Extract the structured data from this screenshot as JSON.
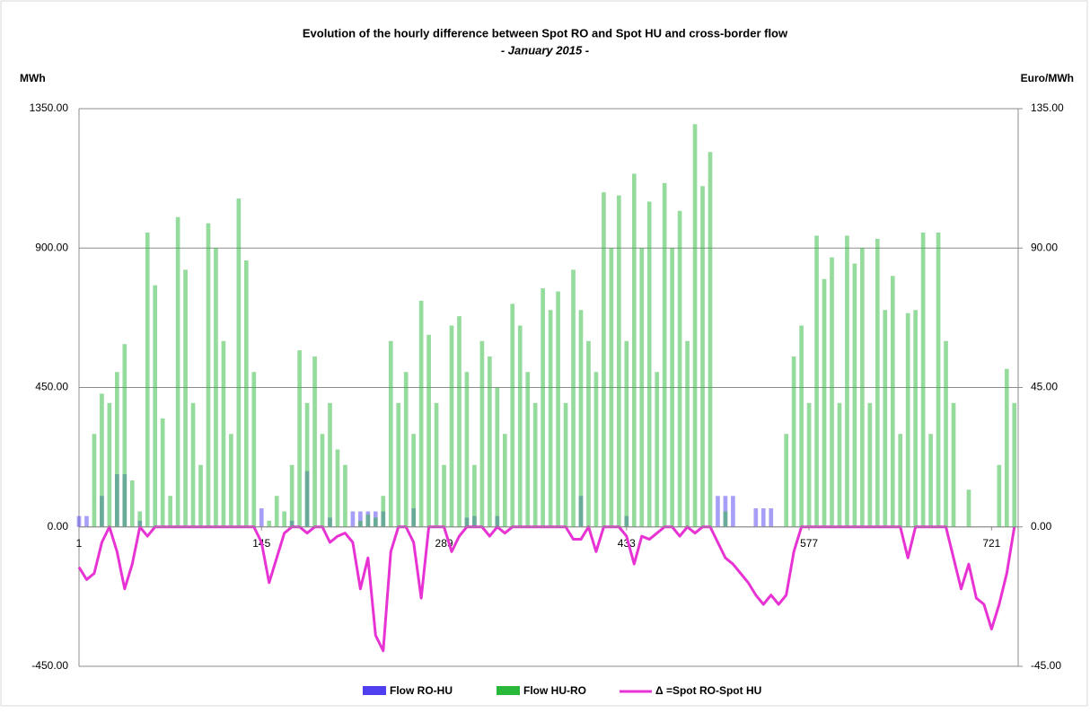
{
  "chart_data": {
    "type": "bar-line",
    "title": "Evolution of the hourly difference between Spot RO and Spot HU and cross-border flow",
    "subtitle": "- January 2015 -",
    "y_label": "MWh",
    "y2_label": "Euro/MWh",
    "x": [
      1,
      7,
      13,
      19,
      25,
      31,
      37,
      43,
      49,
      55,
      61,
      67,
      73,
      79,
      85,
      91,
      97,
      103,
      109,
      115,
      121,
      127,
      133,
      139,
      145,
      151,
      157,
      163,
      169,
      175,
      181,
      187,
      193,
      199,
      205,
      211,
      217,
      223,
      229,
      235,
      241,
      247,
      253,
      259,
      265,
      271,
      277,
      283,
      289,
      295,
      301,
      307,
      313,
      319,
      325,
      331,
      337,
      343,
      349,
      355,
      361,
      367,
      373,
      379,
      385,
      391,
      397,
      403,
      409,
      415,
      421,
      427,
      433,
      439,
      445,
      451,
      457,
      463,
      469,
      475,
      481,
      487,
      493,
      499,
      505,
      511,
      517,
      523,
      529,
      535,
      541,
      547,
      553,
      559,
      565,
      571,
      577,
      583,
      589,
      595,
      601,
      607,
      613,
      619,
      625,
      631,
      637,
      643,
      649,
      655,
      661,
      667,
      673,
      679,
      685,
      691,
      697,
      703,
      709,
      715,
      721,
      727,
      733,
      739
    ],
    "xlim": [
      1,
      742
    ],
    "xticks": [
      1,
      145,
      289,
      433,
      577,
      721
    ],
    "ylim": [
      -450,
      1350
    ],
    "yticks": [
      {
        "value": -450,
        "label": "-450.00"
      },
      {
        "value": 0,
        "label": "0.00"
      },
      {
        "value": 450,
        "label": "450.00"
      },
      {
        "value": 900,
        "label": "900.00"
      },
      {
        "value": 1350,
        "label": "1350.00"
      }
    ],
    "y2lim": [
      -45,
      135
    ],
    "y2ticks": [
      {
        "value": -45,
        "label": "-45.00"
      },
      {
        "value": 0,
        "label": "0.00"
      },
      {
        "value": 45,
        "label": "45.00"
      },
      {
        "value": 90,
        "label": "90.00"
      },
      {
        "value": 135,
        "label": "135.00"
      }
    ],
    "grid": true,
    "series": [
      {
        "name": "Flow RO-HU",
        "color": "#4f3ff0",
        "kind": "bar",
        "values": [
          35,
          35,
          0,
          100,
          0,
          170,
          170,
          0,
          20,
          0,
          0,
          0,
          0,
          0,
          0,
          0,
          0,
          0,
          0,
          0,
          0,
          0,
          0,
          0,
          60,
          0,
          0,
          0,
          20,
          0,
          180,
          0,
          0,
          30,
          0,
          0,
          50,
          50,
          50,
          50,
          50,
          0,
          0,
          0,
          60,
          0,
          0,
          0,
          0,
          0,
          0,
          30,
          35,
          0,
          0,
          35,
          0,
          0,
          0,
          0,
          0,
          0,
          0,
          0,
          0,
          0,
          100,
          0,
          0,
          0,
          0,
          0,
          35,
          0,
          0,
          0,
          0,
          0,
          0,
          0,
          0,
          0,
          0,
          0,
          100,
          100,
          100,
          0,
          0,
          60,
          60,
          60,
          0,
          0,
          0,
          0,
          0,
          0,
          0,
          0,
          0,
          0,
          0,
          0,
          0,
          0,
          0,
          0,
          0,
          0,
          0,
          0,
          0,
          0,
          0,
          0,
          0,
          0,
          0,
          0,
          0,
          0,
          0,
          0
        ]
      },
      {
        "name": "Flow HU-RO",
        "color": "#2ab83a",
        "kind": "bar",
        "values": [
          0,
          0,
          300,
          430,
          400,
          500,
          590,
          150,
          50,
          950,
          780,
          350,
          100,
          1000,
          830,
          400,
          200,
          980,
          900,
          600,
          300,
          1060,
          860,
          500,
          0,
          20,
          100,
          50,
          200,
          570,
          400,
          550,
          300,
          400,
          250,
          200,
          0,
          20,
          40,
          30,
          100,
          600,
          400,
          500,
          300,
          730,
          620,
          400,
          200,
          650,
          680,
          500,
          200,
          600,
          550,
          450,
          300,
          720,
          650,
          500,
          400,
          770,
          700,
          760,
          400,
          830,
          700,
          600,
          500,
          1080,
          900,
          1070,
          600,
          1140,
          900,
          1050,
          500,
          1110,
          900,
          1020,
          600,
          1300,
          1100,
          1210,
          0,
          50,
          0,
          0,
          0,
          0,
          0,
          0,
          0,
          300,
          550,
          650,
          400,
          940,
          800,
          870,
          400,
          940,
          850,
          900,
          400,
          930,
          700,
          810,
          300,
          690,
          700,
          950,
          300,
          950,
          600,
          400,
          0,
          120,
          0,
          0,
          0,
          200,
          510,
          400
        ]
      },
      {
        "name": "Δ =Spot RO-Spot HU",
        "color": "#e833d4",
        "kind": "line",
        "axis": "y2",
        "values": [
          -13,
          -17,
          -15,
          -5,
          0,
          -8,
          -20,
          -12,
          0,
          -3,
          0,
          0,
          0,
          0,
          0,
          0,
          0,
          0,
          0,
          0,
          0,
          0,
          0,
          0,
          -5,
          -18,
          -10,
          -2,
          0,
          0,
          -2,
          0,
          0,
          -5,
          -3,
          -2,
          -5,
          -20,
          -10,
          -35,
          -40,
          -8,
          0,
          0,
          -5,
          -23,
          0,
          0,
          0,
          -8,
          -3,
          0,
          0,
          0,
          -3,
          0,
          -2,
          0,
          0,
          0,
          0,
          0,
          0,
          0,
          0,
          -4,
          -4,
          0,
          -8,
          0,
          0,
          0,
          -3,
          -12,
          -3,
          -4,
          -2,
          0,
          0,
          -3,
          0,
          -2,
          0,
          0,
          -5,
          -10,
          -12,
          -15,
          -18,
          -22,
          -25,
          -22,
          -25,
          -22,
          -8,
          0,
          0,
          0,
          0,
          0,
          0,
          0,
          0,
          0,
          0,
          0,
          0,
          0,
          0,
          -10,
          0,
          0,
          0,
          0,
          0,
          -10,
          -20,
          -12,
          -23,
          -25,
          -33,
          -25,
          -15,
          0
        ]
      }
    ]
  }
}
